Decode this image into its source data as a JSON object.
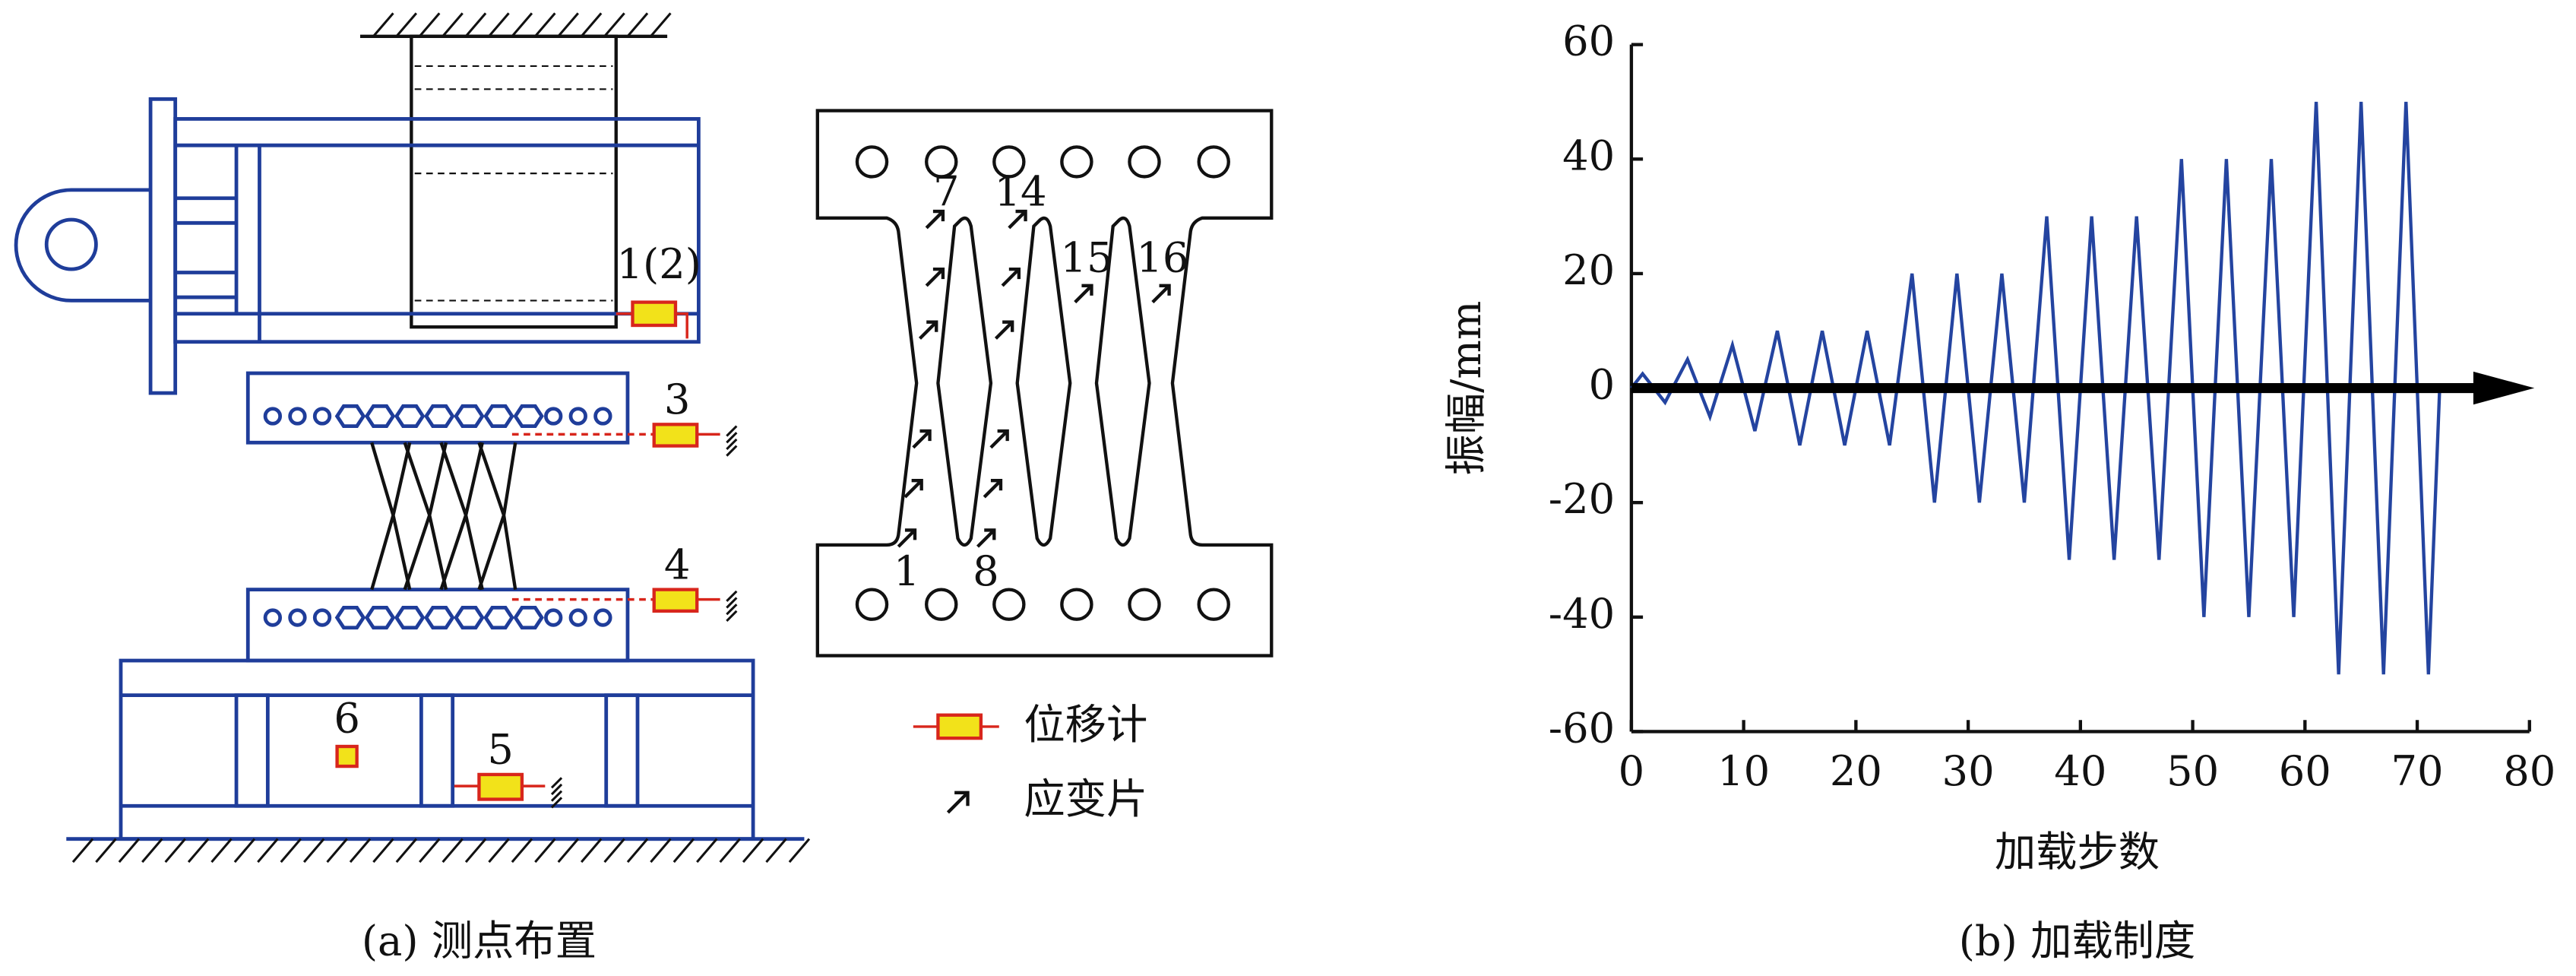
{
  "diagram": {
    "labels": [
      "1(2)",
      "3",
      "4",
      "5",
      "6",
      "7",
      "14",
      "15",
      "16",
      "1",
      "8"
    ],
    "legend": [
      "位移计",
      "应变片"
    ],
    "caption": "(a) 测点布置"
  },
  "chart_data": {
    "type": "line",
    "caption": "(b) 加载制度",
    "xlabel": "加载步数",
    "ylabel": "振幅/mm",
    "x": [
      0,
      1,
      3,
      5,
      7,
      9,
      11,
      13,
      15,
      17,
      19,
      21,
      23,
      25,
      27,
      29,
      31,
      33,
      35,
      37,
      39,
      41,
      43,
      45,
      47,
      49,
      51,
      53,
      55,
      57,
      59,
      61,
      63,
      65,
      67,
      69,
      71,
      72
    ],
    "values": [
      0,
      2.5,
      -2.5,
      5,
      -5,
      7.5,
      -7.5,
      10,
      -10,
      10,
      -10,
      10,
      -10,
      20,
      -20,
      20,
      -20,
      20,
      -20,
      30,
      -30,
      30,
      -30,
      30,
      -30,
      40,
      -40,
      40,
      -40,
      40,
      -40,
      50,
      -50,
      50,
      -50,
      50,
      -50,
      0
    ],
    "color": "#2444a0",
    "xlim": [
      0,
      80
    ],
    "xticks": [
      0,
      10,
      20,
      30,
      40,
      50,
      60,
      70,
      80
    ],
    "ylim": [
      -60,
      60
    ],
    "yticks": [
      -60,
      -40,
      -20,
      0,
      20,
      40,
      60
    ]
  }
}
